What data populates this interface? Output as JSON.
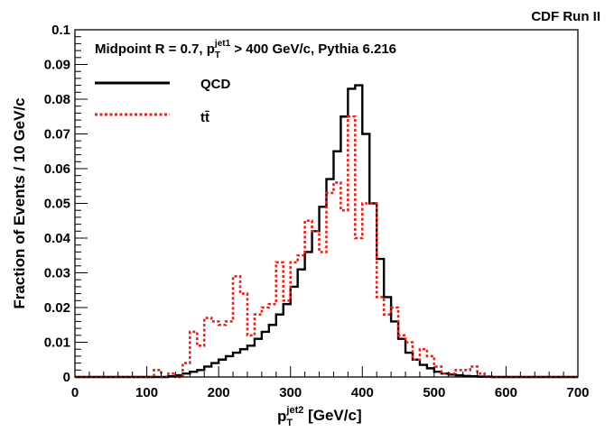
{
  "chart_data": {
    "type": "line",
    "title": "",
    "corner_label": "CDF Run II",
    "annotation": {
      "prefix": "Midpoint R = 0.7, p",
      "sub": "T",
      "sup": "jet1",
      "suffix": " > 400 GeV/c, Pythia 6.216"
    },
    "xlabel": {
      "main": "p",
      "sub": "T",
      "sup": "jet2",
      "suffix": " [GeV/c]"
    },
    "ylabel": "Fraction of Events / 10 GeV/c",
    "xlim": [
      0,
      700
    ],
    "ylim": [
      0,
      0.1
    ],
    "xticks": [
      0,
      100,
      200,
      300,
      400,
      500,
      600,
      700
    ],
    "yticks": [
      0,
      0.01,
      0.02,
      0.03,
      0.04,
      0.05,
      0.06,
      0.07,
      0.08,
      0.09,
      0.1
    ],
    "ytick_labels": [
      "0",
      "0.01",
      "0.02",
      "0.03",
      "0.04",
      "0.05",
      "0.06",
      "0.07",
      "0.08",
      "0.09",
      "0.1"
    ],
    "bin_width": 10,
    "bin_starts": [
      0,
      10,
      20,
      30,
      40,
      50,
      60,
      70,
      80,
      90,
      100,
      110,
      120,
      130,
      140,
      150,
      160,
      170,
      180,
      190,
      200,
      210,
      220,
      230,
      240,
      250,
      260,
      270,
      280,
      290,
      300,
      310,
      320,
      330,
      340,
      350,
      360,
      370,
      380,
      390,
      400,
      410,
      420,
      430,
      440,
      450,
      460,
      470,
      480,
      490,
      500,
      510,
      520,
      530,
      540,
      550,
      560,
      570,
      580,
      590,
      600,
      610,
      620,
      630,
      640,
      650,
      660,
      670,
      680,
      690
    ],
    "legend_position": "top-left",
    "series": [
      {
        "name": "QCD",
        "color": "#000000",
        "style": "solid",
        "values": [
          0,
          0,
          0,
          0,
          0,
          0,
          0,
          0,
          0,
          0,
          0,
          0,
          0,
          0.0002,
          0.0005,
          0.001,
          0.0015,
          0.002,
          0.003,
          0.004,
          0.005,
          0.006,
          0.007,
          0.008,
          0.009,
          0.011,
          0.013,
          0.015,
          0.018,
          0.021,
          0.026,
          0.031,
          0.036,
          0.042,
          0.049,
          0.057,
          0.065,
          0.075,
          0.083,
          0.084,
          0.07,
          0.05,
          0.034,
          0.023,
          0.016,
          0.011,
          0.007,
          0.005,
          0.0035,
          0.0025,
          0.0015,
          0.001,
          0.0007,
          0.0005,
          0.0003,
          0.0002,
          0.0001,
          0.0001,
          0,
          0,
          0,
          0,
          0,
          0,
          0,
          0,
          0,
          0,
          0,
          0
        ]
      },
      {
        "name": "tt̄",
        "color": "#e8211b",
        "style": "dotted",
        "values": [
          0,
          0,
          0,
          0,
          0,
          0,
          0,
          0,
          0,
          0,
          0,
          0.002,
          0,
          0.001,
          0,
          0.004,
          0.013,
          0.009,
          0.017,
          0.016,
          0.015,
          0.016,
          0.029,
          0.024,
          0.012,
          0.018,
          0.02,
          0.021,
          0.033,
          0.022,
          0.033,
          0.035,
          0.045,
          0.042,
          0.036,
          0.053,
          0.056,
          0.048,
          0.075,
          0.04,
          0.05,
          0.05,
          0.023,
          0.018,
          0.02,
          0.012,
          0.01,
          0.005,
          0.008,
          0.006,
          0.003,
          0.001,
          0.001,
          0.002,
          0.002,
          0.003,
          0.001,
          0,
          0,
          0,
          0,
          0,
          0,
          0,
          0,
          0,
          0,
          0,
          0,
          0
        ]
      }
    ]
  }
}
